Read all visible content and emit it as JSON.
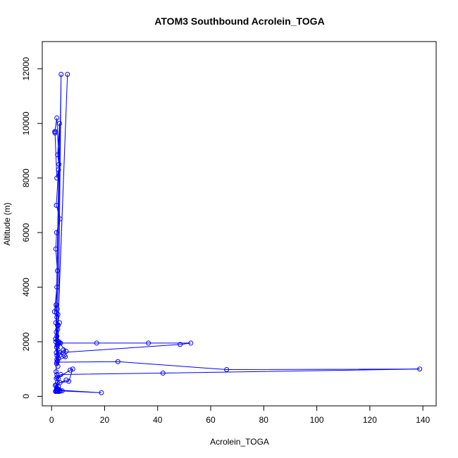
{
  "chart_data": {
    "type": "line",
    "title": "ATOM3 Southbound Acrolein_TOGA",
    "xlabel": "Acrolein_TOGA",
    "ylabel": "Altitude (m)",
    "xlim": [
      -3.5,
      145
    ],
    "ylim": [
      -350,
      13000
    ],
    "xticks": [
      0,
      20,
      40,
      60,
      80,
      100,
      120,
      140
    ],
    "yticks": [
      0,
      2000,
      4000,
      6000,
      8000,
      10000,
      12000
    ],
    "grid": false,
    "color": "#0000ff",
    "series": [
      {
        "x": [
          1.5,
          2.0,
          1.8,
          2.2,
          2.5,
          2.0,
          1.7,
          3.6,
          2.4,
          2.0,
          6.0,
          2.1,
          1.6,
          3.0,
          2.3,
          2.8,
          2.0,
          1.2,
          1.4,
          1.3,
          2.0,
          2.6,
          1.8,
          3.2,
          1.9,
          1.6,
          2.2,
          2.0,
          1.1,
          1.7,
          2.1,
          1.9,
          2.4,
          2.0,
          1.6,
          2.2,
          3.0,
          2.5,
          2.3,
          1.8,
          2.0,
          1.5,
          2.1,
          2.7,
          3.4,
          2.2,
          1.9,
          2.4,
          1.8,
          3.1,
          2.5,
          2.0,
          4.5,
          5.5,
          3.0,
          2.6,
          17.0,
          36.5,
          52.5,
          48.5,
          3.0,
          4.8,
          5.2,
          2.3,
          1.9,
          2.0,
          25.0,
          66.0,
          138.8,
          42.0,
          3.5,
          2.1,
          1.8,
          7.0,
          8.0,
          6.5,
          3.2,
          5.5,
          1.4,
          2.6,
          1.9,
          2.2,
          2.8,
          2.0,
          18.8,
          3.3,
          2.4,
          1.6,
          2.0,
          4.0,
          2.5,
          3.0,
          2.2,
          1.7,
          2.4
        ],
        "y": [
          180,
          300,
          420,
          500,
          650,
          800,
          900,
          11800,
          1100,
          1500,
          11800,
          1900,
          2000,
          10000,
          8850,
          8500,
          10200,
          9700,
          9700,
          9650,
          8000,
          8300,
          7000,
          6500,
          6000,
          5400,
          4600,
          4000,
          3100,
          3350,
          3200,
          3050,
          3000,
          2900,
          2700,
          2600,
          2700,
          2600,
          2450,
          2350,
          2200,
          2100,
          2050,
          2000,
          1950,
          1850,
          1800,
          1700,
          1600,
          1500,
          1400,
          1350,
          1700,
          1650,
          1950,
          1950,
          1950,
          1950,
          1950,
          1900,
          1600,
          1500,
          1450,
          1300,
          1200,
          1250,
          1270,
          980,
          1000,
          850,
          800,
          700,
          650,
          960,
          1000,
          550,
          500,
          600,
          400,
          350,
          300,
          280,
          250,
          230,
          130,
          200,
          180,
          200,
          200,
          200,
          200,
          180,
          200,
          180,
          200
        ]
      }
    ]
  }
}
